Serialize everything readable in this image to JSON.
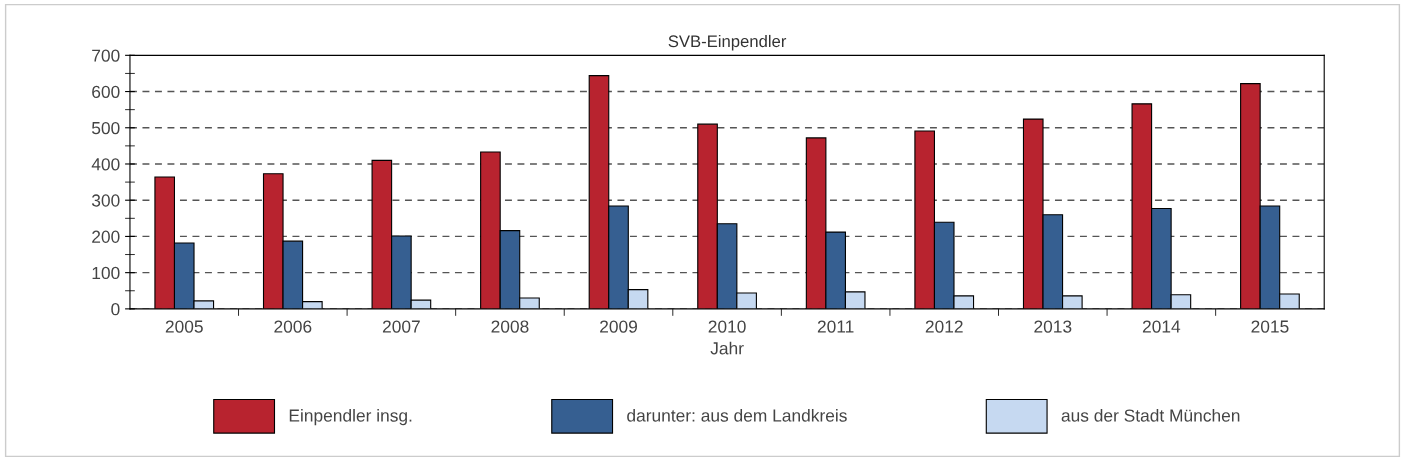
{
  "chart_data": {
    "type": "bar",
    "title": "SVB-Einpendler",
    "xlabel": "Jahr",
    "categories": [
      "2005",
      "2006",
      "2007",
      "2008",
      "2009",
      "2010",
      "2011",
      "2012",
      "2013",
      "2014",
      "2015"
    ],
    "series": [
      {
        "name": "Einpendler insg.",
        "color": "#b8232f",
        "values": [
          364,
          373,
          410,
          433,
          644,
          510,
          472,
          491,
          524,
          566,
          622
        ]
      },
      {
        "name": "darunter: aus dem Landkreis",
        "color": "#365f91",
        "values": [
          182,
          187,
          201,
          216,
          284,
          235,
          212,
          239,
          260,
          277,
          284
        ]
      },
      {
        "name": "aus der Stadt München",
        "color": "#c6d9f1",
        "values": [
          22,
          20,
          24,
          30,
          53,
          44,
          47,
          36,
          36,
          39,
          41
        ]
      }
    ],
    "ylim": [
      0,
      700
    ],
    "yticks": [
      0,
      100,
      200,
      300,
      400,
      500,
      600,
      700
    ],
    "grid": "y",
    "legend": "bottom"
  }
}
